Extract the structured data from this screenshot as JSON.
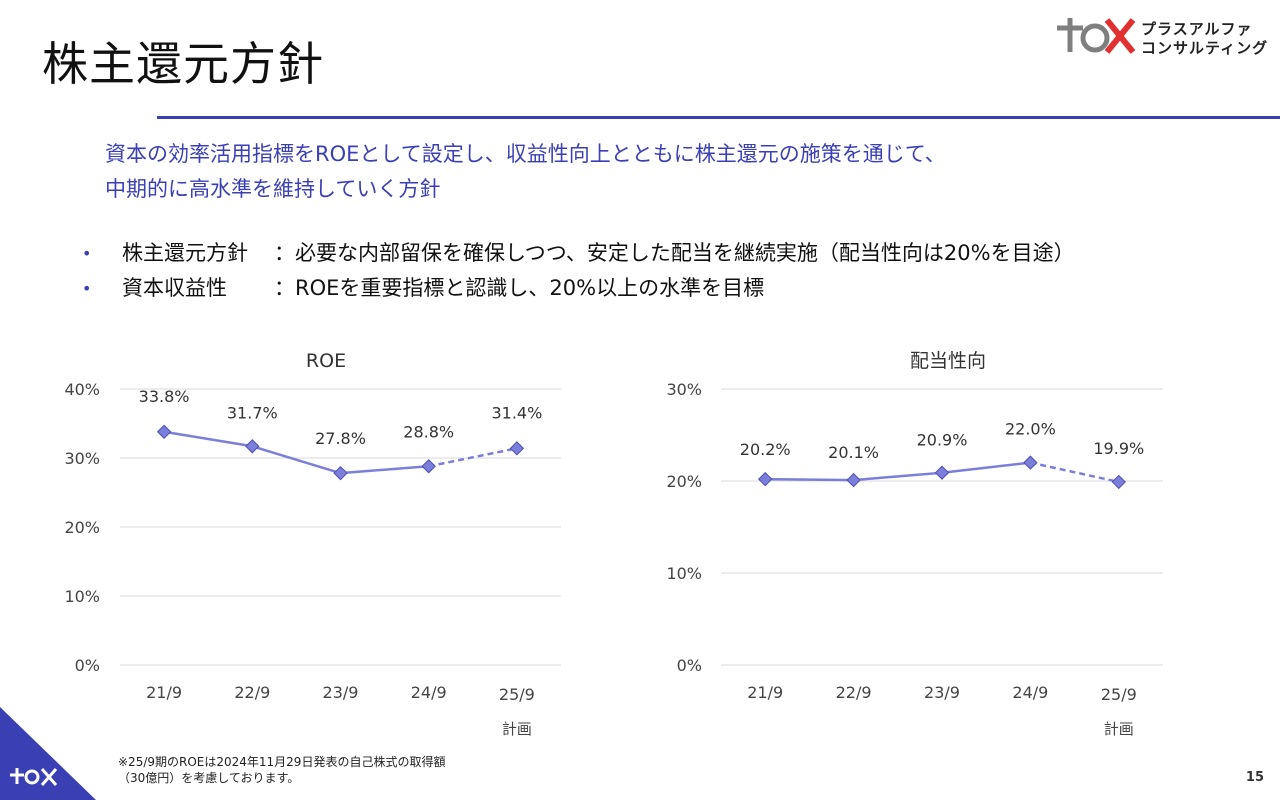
{
  "page": {
    "title": "株主還元方針",
    "logo_text_line1": "プラスアルファ",
    "logo_text_line2": "コンサルティング",
    "lead_line1": "資本の効率活用指標をROEとして設定し、収益性向上とともに株主還元の施策を通じて、",
    "lead_line2": "中期的に高水準を維持していく方針",
    "bullets": [
      {
        "key": "株主還元方針",
        "text": "：必要な内部留保を確保しつつ、安定した配当を継続実施（配当性向は20%を目途）"
      },
      {
        "key": "資本収益性",
        "text": "：ROEを重要指標と認識し、20%以上の水準を目標"
      }
    ],
    "footnote_line1": "※25/9期のROEは2024年11月29日発表の自己株式の取得額",
    "footnote_line2": "（30億円）を考慮しております。",
    "page_number": "15",
    "accent_color": "#3a3fb4",
    "series_color": "#7b7fdb"
  },
  "chart_data": [
    {
      "type": "line",
      "title": "ROE",
      "categories": [
        "21/9",
        "22/9",
        "23/9",
        "24/9",
        "25/9"
      ],
      "category_sublabels": [
        "",
        "",
        "",
        "",
        "計画"
      ],
      "values": [
        33.8,
        31.7,
        27.8,
        28.8,
        31.4
      ],
      "data_labels": [
        "33.8%",
        "31.7%",
        "27.8%",
        "28.8%",
        "31.4%"
      ],
      "ylim": [
        0,
        40
      ],
      "yticks": [
        "0%",
        "10%",
        "20%",
        "30%",
        "40%"
      ],
      "ytick_values": [
        0,
        10,
        20,
        30,
        40
      ],
      "dashed_from_index": 3,
      "grid": true
    },
    {
      "type": "line",
      "title": "配当性向",
      "categories": [
        "21/9",
        "22/9",
        "23/9",
        "24/9",
        "25/9"
      ],
      "category_sublabels": [
        "",
        "",
        "",
        "",
        "計画"
      ],
      "values": [
        20.2,
        20.1,
        20.9,
        22.0,
        19.9
      ],
      "data_labels": [
        "20.2%",
        "20.1%",
        "20.9%",
        "22.0%",
        "19.9%"
      ],
      "ylim": [
        0,
        30
      ],
      "yticks": [
        "0%",
        "10%",
        "20%",
        "30%"
      ],
      "ytick_values": [
        0,
        10,
        20,
        30
      ],
      "dashed_from_index": 3,
      "grid": true
    }
  ]
}
